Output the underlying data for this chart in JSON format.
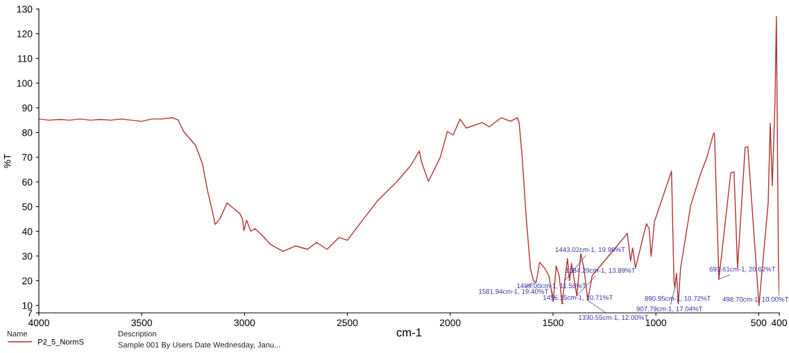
{
  "chart_data": {
    "type": "line",
    "xlabel": "cm-1",
    "ylabel": "%T",
    "xlim": [
      4000,
      400
    ],
    "xticks": [
      4000,
      3500,
      3000,
      2500,
      2000,
      1500,
      1000,
      500,
      400
    ],
    "ylim": [
      7,
      130
    ],
    "yticks": [
      7,
      10,
      20,
      30,
      40,
      50,
      60,
      70,
      80,
      90,
      100,
      110,
      120,
      130
    ],
    "grid": false,
    "legend": "bottom left",
    "line_style": "solid",
    "marker": "none",
    "series": [
      {
        "name": "P2_5_NormS",
        "color": "#b03030",
        "x": [
          4000,
          3950,
          3900,
          3850,
          3800,
          3750,
          3700,
          3650,
          3600,
          3550,
          3500,
          3450,
          3400,
          3350,
          3323,
          3296,
          3238,
          3204,
          3180,
          3160,
          3143,
          3120,
          3085,
          3050,
          3024,
          3010,
          3003,
          2990,
          2969,
          2949,
          2908,
          2874,
          2830,
          2813,
          2752,
          2694,
          2650,
          2599,
          2541,
          2500,
          2432,
          2354,
          2262,
          2194,
          2150,
          2140,
          2106,
          2048,
          2014,
          1986,
          1952,
          1922,
          1844,
          1810,
          1752,
          1707,
          1673,
          1665,
          1650,
          1630,
          1610,
          1595,
          1581.94,
          1565,
          1540,
          1520,
          1499,
          1485,
          1470,
          1456.15,
          1443.02,
          1430,
          1420,
          1410,
          1384.29,
          1365,
          1350,
          1330.55,
          1310,
          1250,
          1200,
          1150,
          1139,
          1123,
          1113,
          1099,
          1046,
          1033,
          1023,
          1007,
          924,
          912,
          907.79,
          900,
          890.95,
          880,
          831,
          785,
          752,
          719,
          715,
          693.61,
          636,
          620,
          603,
          566,
          553,
          498.7,
          454,
          444,
          434,
          421,
          414,
          404,
          400
        ],
        "values": [
          85.5,
          85,
          85.3,
          85,
          85.5,
          85,
          85.3,
          85,
          85.5,
          85,
          84.5,
          85.5,
          85.5,
          86,
          85.1,
          80.4,
          74.8,
          67.2,
          56.5,
          49.5,
          42.8,
          45,
          51.5,
          49,
          47.3,
          45,
          40.3,
          44.5,
          40,
          41.1,
          37.8,
          34.7,
          32.7,
          31.9,
          34.1,
          32.7,
          35.5,
          32.7,
          37.5,
          36.4,
          43.9,
          52.3,
          59.9,
          66.4,
          72.5,
          68.3,
          60.2,
          70,
          80.4,
          79,
          85.4,
          81.8,
          84,
          82.3,
          86,
          84.6,
          86,
          84,
          70,
          45,
          25,
          20,
          19.4,
          27.5,
          25,
          22,
          11.6,
          26,
          22,
          10.7,
          20,
          29,
          20,
          27,
          13.9,
          31,
          25,
          12,
          22,
          28,
          33,
          38,
          39.2,
          28,
          33.3,
          25.2,
          43.1,
          41.1,
          29.9,
          43.9,
          64.4,
          20,
          17,
          23,
          10.7,
          25,
          50.4,
          62.7,
          70,
          79.8,
          79.5,
          20.6,
          63.6,
          64.1,
          25.2,
          74,
          74.3,
          10,
          51.5,
          83.7,
          58.5,
          91.6,
          127,
          26,
          14
        ]
      }
    ],
    "annotations": [
      {
        "text": "1581.94cm-1, 19.40%T",
        "x": 1581.94,
        "y": 19.4
      },
      {
        "text": "1499.00cm-1, 11.58%T",
        "x": 1499,
        "y": 11.58
      },
      {
        "text": "1456.15cm-1, 10.71%T",
        "x": 1456.15,
        "y": 10.71
      },
      {
        "text": "1443.02cm-1, 19.98%T",
        "x": 1443.02,
        "y": 19.98
      },
      {
        "text": "1384.29cm-1, 13.89%T",
        "x": 1384.29,
        "y": 13.89
      },
      {
        "text": "1330.55cm-1, 12.00%T",
        "x": 1330.55,
        "y": 12
      },
      {
        "text": "907.79cm-1, 17.04%T",
        "x": 907.79,
        "y": 17.04
      },
      {
        "text": "890.95cm-1, 10.72%T",
        "x": 890.95,
        "y": 10.72
      },
      {
        "text": "693.61cm-1, 20.62%T",
        "x": 693.61,
        "y": 20.62
      },
      {
        "text": "498.70cm-1, 10.00%T",
        "x": 498.7,
        "y": 10
      },
      "Name",
      "Description",
      "Sample 001 By Users Date Wednesday, Janu..."
    ]
  }
}
